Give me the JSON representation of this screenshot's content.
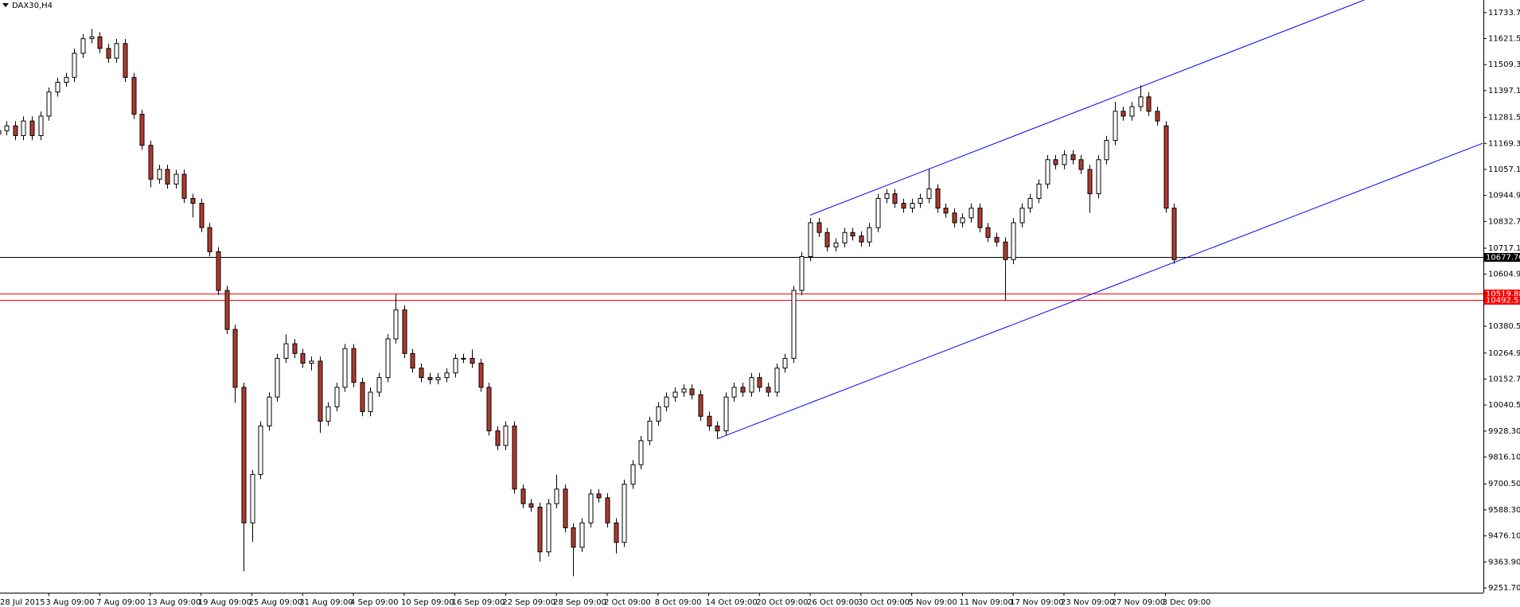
{
  "chart_data": {
    "type": "candlestick",
    "title": "DAX30,H4",
    "categories": [
      "28 Jul 2015",
      null,
      null,
      null,
      null,
      null,
      "3 Aug 09:00",
      null,
      null,
      null,
      null,
      null,
      "7 Aug 09:00",
      null,
      null,
      null,
      null,
      null,
      "13 Aug 09:00",
      null,
      null,
      null,
      null,
      null,
      "19 Aug 09:00",
      null,
      null,
      null,
      null,
      null,
      "25 Aug 09:00",
      null,
      null,
      null,
      null,
      null,
      "31 Aug 09:00",
      null,
      null,
      null,
      null,
      null,
      "4 Sep 09:00",
      null,
      null,
      null,
      null,
      null,
      "10 Sep 09:00",
      null,
      null,
      null,
      null,
      null,
      "16 Sep 09:00",
      null,
      null,
      null,
      null,
      null,
      "22 Sep 09:00",
      null,
      null,
      null,
      null,
      null,
      "28 Sep 09:00",
      null,
      null,
      null,
      null,
      null,
      "2 Oct 09:00",
      null,
      null,
      null,
      null,
      null,
      "8 Oct 09:00",
      null,
      null,
      null,
      null,
      null,
      "14 Oct 09:00",
      null,
      null,
      null,
      null,
      null,
      "20 Oct 09:00",
      null,
      null,
      null,
      null,
      null,
      "26 Oct 09:00",
      null,
      null,
      null,
      null,
      null,
      "30 Oct 09:00",
      null,
      null,
      null,
      null,
      null,
      "5 Nov 09:00",
      null,
      null,
      null,
      null,
      null,
      "11 Nov 09:00",
      null,
      null,
      null,
      null,
      null,
      "17 Nov 09:00",
      null,
      null,
      null,
      null,
      null,
      "23 Nov 09:00",
      null,
      null,
      null,
      null,
      null,
      "27 Nov 09:00",
      null,
      null,
      null,
      null,
      null,
      "3 Dec 09:00",
      null
    ],
    "open": [
      11210,
      11224,
      11245,
      11203,
      11266,
      11203,
      11287,
      11391,
      11433,
      11454,
      11558,
      11621,
      11629,
      11579,
      11537,
      11600,
      11454,
      11295,
      11161,
      11015,
      11057,
      10994,
      11036,
      10932,
      10911,
      10806,
      10702,
      10535,
      10367,
      10117,
      9532,
      9741,
      9950,
      10075,
      10242,
      10305,
      10263,
      10221,
      10230,
      9971,
      10033,
      10117,
      10284,
      10138,
      10012,
      10096,
      10159,
      10326,
      10451,
      10263,
      10200,
      10159,
      10150,
      10159,
      10179,
      10242,
      10242,
      10221,
      10117,
      9929,
      9866,
      9950,
      9678,
      9615,
      9600,
      9407,
      9615,
      9678,
      9511,
      9427,
      9532,
      9657,
      9640,
      9532,
      9448,
      9699,
      9783,
      9887,
      9971,
      10033,
      10075,
      10096,
      10110,
      10085,
      9992,
      9950,
      9929,
      10075,
      10117,
      10096,
      10159,
      10117,
      10096,
      10200,
      10242,
      10535,
      10681,
      10827,
      10785,
      10723,
      10740,
      10785,
      10770,
      10744,
      10806,
      10932,
      10952,
      10911,
      10890,
      10911,
      10932,
      10973,
      10890,
      10869,
      10827,
      10848,
      10890,
      10806,
      10764,
      10744,
      10668,
      10827,
      10890,
      10932,
      10994,
      11099,
      11078,
      11120,
      11099,
      11057,
      10952,
      11099,
      11182,
      11308,
      11287,
      11328,
      11370,
      11308,
      11245,
      10890
    ],
    "high": [
      11244,
      11265,
      11265,
      11286,
      11286,
      11307,
      11411,
      11453,
      11474,
      11578,
      11641,
      11663,
      11649,
      11599,
      11620,
      11620,
      11474,
      11315,
      11181,
      11077,
      11077,
      11056,
      11056,
      10952,
      10931,
      10826,
      10722,
      10555,
      10387,
      10137,
      9761,
      9970,
      10095,
      10262,
      10345,
      10325,
      10283,
      10250,
      10250,
      10053,
      10137,
      10304,
      10304,
      10158,
      10116,
      10179,
      10346,
      10519,
      10471,
      10283,
      10220,
      10179,
      10179,
      10199,
      10262,
      10262,
      10280,
      10241,
      10137,
      9949,
      9970,
      9970,
      9698,
      9635,
      9620,
      9635,
      9740,
      9698,
      9531,
      9552,
      9677,
      9677,
      9660,
      9552,
      9719,
      9803,
      9907,
      9991,
      10053,
      10095,
      10116,
      10130,
      10130,
      10105,
      10012,
      9970,
      10095,
      10137,
      10137,
      10179,
      10179,
      10137,
      10220,
      10262,
      10555,
      10701,
      10847,
      10847,
      10805,
      10760,
      10805,
      10805,
      10790,
      10826,
      10952,
      10972,
      10972,
      10931,
      10931,
      10952,
      11060,
      10993,
      10910,
      10889,
      10868,
      10910,
      10910,
      10826,
      10784,
      10764,
      10847,
      10910,
      10952,
      11014,
      11119,
      11119,
      11140,
      11140,
      11119,
      11077,
      11119,
      11202,
      11349,
      11328,
      11348,
      11420,
      11390,
      11328,
      11265,
      10910
    ],
    "low": [
      11190,
      11204,
      11183,
      11183,
      11183,
      11183,
      11267,
      11371,
      11413,
      11434,
      11538,
      11601,
      11559,
      11517,
      11517,
      11434,
      11275,
      11141,
      10980,
      10995,
      10974,
      10974,
      10912,
      10850,
      10786,
      10682,
      10515,
      10347,
      10050,
      9323,
      9450,
      9721,
      9930,
      10055,
      10222,
      10243,
      10201,
      10190,
      9920,
      9951,
      10013,
      10097,
      10118,
      9992,
      9992,
      10076,
      10139,
      10306,
      10243,
      10180,
      10139,
      10130,
      10130,
      10139,
      10159,
      10222,
      10201,
      10097,
      9909,
      9846,
      9846,
      9658,
      9595,
      9580,
      9365,
      9387,
      9595,
      9491,
      9302,
      9407,
      9512,
      9620,
      9512,
      9400,
      9428,
      9679,
      9763,
      9867,
      9951,
      10013,
      10055,
      10076,
      10065,
      9972,
      9930,
      9895,
      9909,
      10055,
      10076,
      10076,
      10097,
      10076,
      10076,
      10180,
      10222,
      10515,
      10661,
      10765,
      10703,
      10703,
      10720,
      10750,
      10724,
      10724,
      10786,
      10912,
      10891,
      10870,
      10870,
      10891,
      10912,
      10870,
      10849,
      10807,
      10807,
      10828,
      10786,
      10744,
      10724,
      10493,
      10648,
      10807,
      10870,
      10912,
      10974,
      11058,
      11058,
      11079,
      11037,
      10870,
      10932,
      11079,
      11162,
      11267,
      11267,
      11308,
      11288,
      11246,
      10870,
      10650
    ],
    "close": [
      11224,
      11245,
      11203,
      11266,
      11203,
      11287,
      11391,
      11433,
      11454,
      11558,
      11621,
      11629,
      11579,
      11537,
      11600,
      11454,
      11295,
      11161,
      11015,
      11057,
      10994,
      11036,
      10932,
      10911,
      10806,
      10702,
      10535,
      10367,
      10117,
      9532,
      9741,
      9950,
      10075,
      10242,
      10305,
      10263,
      10221,
      10230,
      9971,
      10033,
      10117,
      10284,
      10138,
      10012,
      10096,
      10159,
      10326,
      10451,
      10263,
      10200,
      10159,
      10150,
      10159,
      10179,
      10242,
      10242,
      10221,
      10117,
      9929,
      9866,
      9950,
      9678,
      9615,
      9600,
      9407,
      9615,
      9678,
      9511,
      9427,
      9532,
      9657,
      9640,
      9532,
      9448,
      9699,
      9783,
      9887,
      9971,
      10033,
      10075,
      10096,
      10110,
      10085,
      9992,
      9950,
      9929,
      10075,
      10117,
      10096,
      10159,
      10117,
      10096,
      10200,
      10242,
      10535,
      10681,
      10827,
      10785,
      10723,
      10740,
      10785,
      10770,
      10744,
      10806,
      10932,
      10952,
      10911,
      10890,
      10911,
      10932,
      10973,
      10890,
      10869,
      10827,
      10848,
      10890,
      10806,
      10764,
      10744,
      10668,
      10827,
      10890,
      10932,
      10994,
      11099,
      11078,
      11120,
      11099,
      11057,
      10952,
      11099,
      11182,
      11308,
      11287,
      11328,
      11370,
      11308,
      11266,
      10890,
      10668
    ],
    "up_color": "#ffffff",
    "down_color": "#b03a2e",
    "wick_color": "#000000",
    "ylim": [
      9231,
      11788
    ],
    "yticks": [
      {
        "value": 11733.7,
        "label": "11733.70"
      },
      {
        "value": 11621.5,
        "label": "11621.50"
      },
      {
        "value": 11509.3,
        "label": "11509.30"
      },
      {
        "value": 11397.1,
        "label": "11397.10"
      },
      {
        "value": 11281.5,
        "label": "11281.50"
      },
      {
        "value": 11169.3,
        "label": "11169.30"
      },
      {
        "value": 11057.1,
        "label": "11057.10"
      },
      {
        "value": 10944.9,
        "label": "10944.90"
      },
      {
        "value": 10832.7,
        "label": "10832.70"
      },
      {
        "value": 10717.1,
        "label": "10717.10"
      },
      {
        "value": 10604.9,
        "label": "10604.90"
      },
      {
        "value": 10380.5,
        "label": "10380.50"
      },
      {
        "value": 10264.9,
        "label": "10264.90"
      },
      {
        "value": 10152.7,
        "label": "10152.70"
      },
      {
        "value": 10040.5,
        "label": "10040.50"
      },
      {
        "value": 9928.3,
        "label": "9928.30"
      },
      {
        "value": 9816.1,
        "label": "9816.10"
      },
      {
        "value": 9700.5,
        "label": "9700.50"
      },
      {
        "value": 9588.3,
        "label": "9588.30"
      },
      {
        "value": 9476.1,
        "label": "9476.10"
      },
      {
        "value": 9363.9,
        "label": "9363.90"
      },
      {
        "value": 9251.7,
        "label": "9251.70"
      }
    ],
    "hlines": [
      {
        "value": 10677.7,
        "label": "10677.70",
        "color": "#000000"
      },
      {
        "value": 10519.88,
        "label": "10519.88",
        "color": "#ff0000"
      },
      {
        "value": 10492.53,
        "label": "10492.53",
        "color": "#ff0000"
      }
    ],
    "trendlines": [
      {
        "x": [
          85,
          175.5
        ],
        "y": [
          9895,
          11170
        ],
        "color": "#0000ff"
      },
      {
        "x": [
          96,
          161.5
        ],
        "y": [
          10860,
          11788
        ],
        "color": "#0000ff"
      }
    ]
  }
}
